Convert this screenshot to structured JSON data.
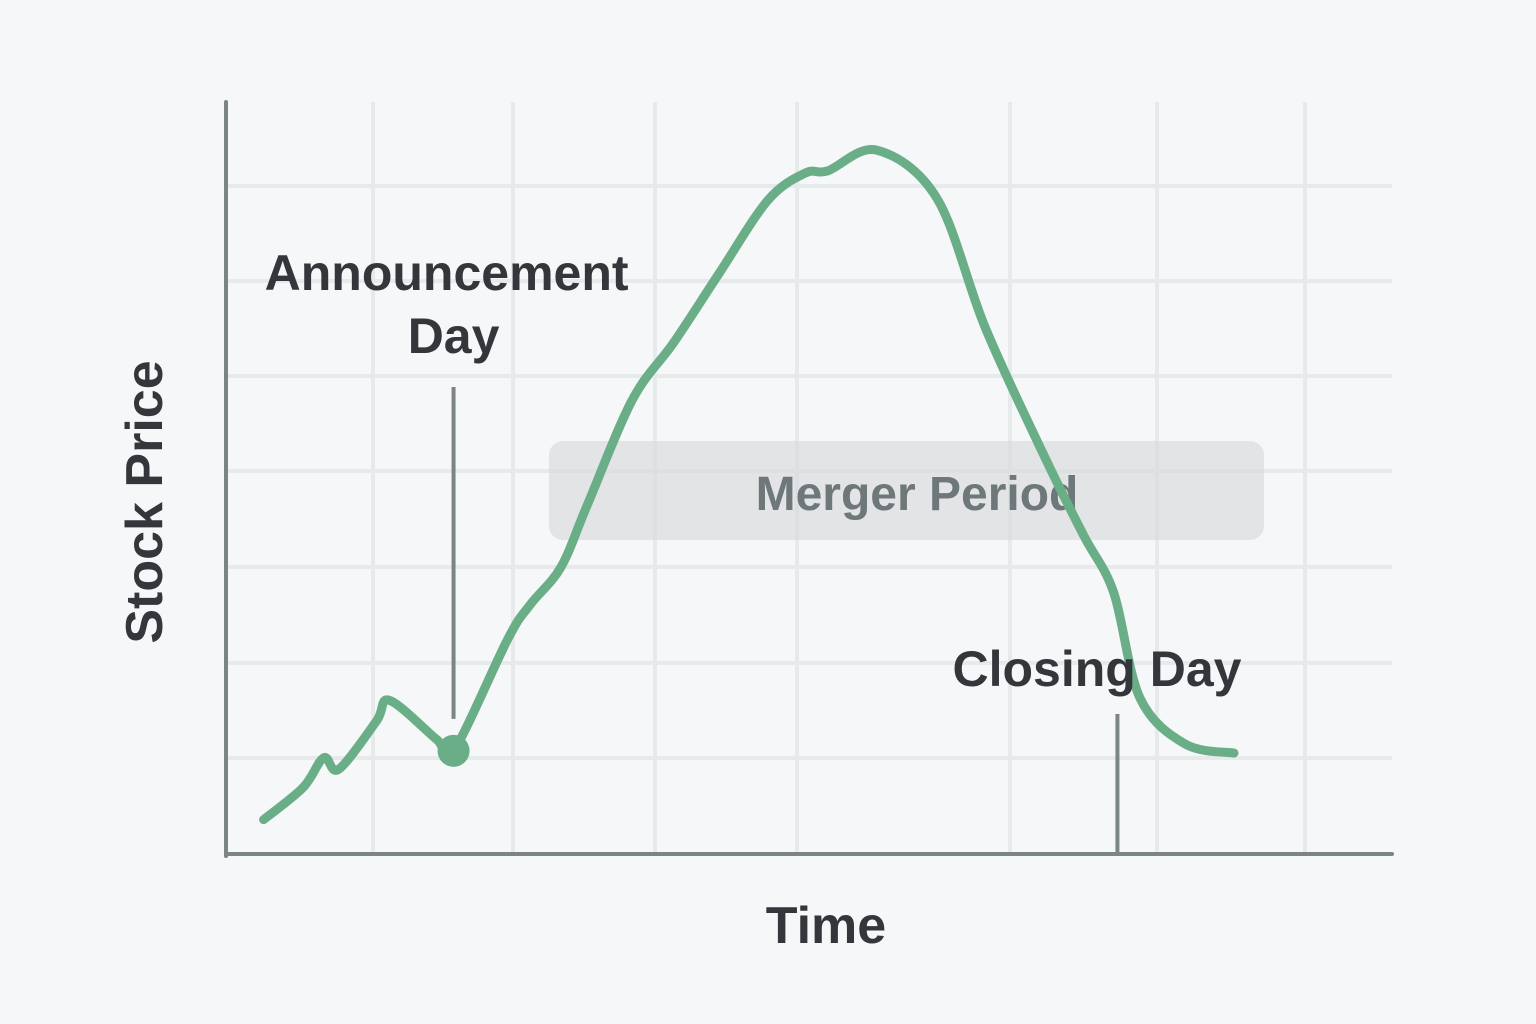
{
  "chart_data": {
    "type": "line",
    "title": "",
    "xlabel": "Time",
    "ylabel": "Stock Price",
    "grid": true,
    "x": [
      0,
      1.05,
      1.6,
      2.0,
      3.0,
      3.35,
      4.6,
      5.05,
      6.5,
      7.1,
      7.9,
      8.6,
      9.8,
      10.9,
      12.1,
      13.4,
      14.4,
      15.0,
      16.3,
      17.9,
      19.2,
      20.8,
      21.8,
      22.6,
      23.3,
      24.5,
      25.8
    ],
    "series": [
      {
        "values": [
          0.35,
          1.05,
          1.7,
          1.45,
          2.5,
          2.95,
          2.1,
          1.85,
          4.3,
          5.05,
          5.85,
          7.2,
          9.5,
          10.75,
          12.25,
          13.85,
          14.45,
          14.5,
          14.95,
          13.9,
          11.05,
          8.2,
          6.55,
          5.3,
          3.0,
          2.0,
          1.8
        ]
      }
    ],
    "xlim": [
      -1,
      30
    ],
    "ylim": [
      -0.4,
      16
    ],
    "line_color": "#6aae88",
    "axis_color": "#7b8584",
    "grid_color": "#e6eaeb",
    "annotations": [
      {
        "text": "Announcement Day",
        "lines": [
          "Announcement",
          "Day"
        ],
        "x": 5.05,
        "kind": "point"
      },
      {
        "text": "Merger Period",
        "kind": "band"
      },
      {
        "text": "Closing Day",
        "x": 22.7,
        "kind": "tick"
      }
    ]
  }
}
